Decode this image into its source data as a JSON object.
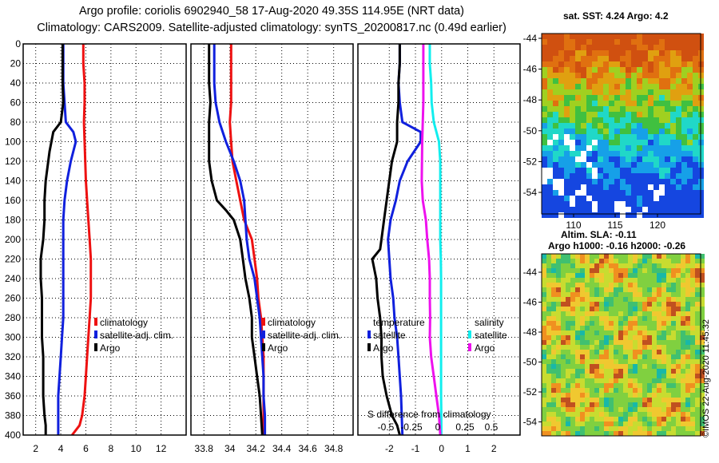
{
  "titles": {
    "line1": "Argo profile: coriolis 6902940_58 17-Aug-2020 49.35S 114.95E (NRT data)",
    "line2": "Climatology: CARS2009. Satellite-adjusted climatology: synTS_20200817.nc (0.49d earlier)"
  },
  "colors": {
    "red": "#ee1111",
    "blue": "#1020dd",
    "black": "#000000",
    "cyan": "#11eeee",
    "magenta": "#ee11ee"
  },
  "chart_data": [
    {
      "type": "line",
      "name": "temperature",
      "title": "",
      "xlabel": "",
      "ylabel": "",
      "xlim": [
        1,
        14
      ],
      "ylim": [
        400,
        0
      ],
      "x_ticks": [
        "2",
        "4",
        "6",
        "8",
        "10",
        "12"
      ],
      "y_ticks": [
        "0",
        "20",
        "40",
        "60",
        "80",
        "100",
        "120",
        "140",
        "160",
        "180",
        "200",
        "220",
        "240",
        "260",
        "280",
        "300",
        "320",
        "340",
        "360",
        "380",
        "400"
      ],
      "legend": [
        "climatology",
        "satellite-adj. clim.",
        "Argo"
      ],
      "legend_position": "lower-right",
      "series": [
        {
          "name": "climatology",
          "color": "red",
          "x": [
            5.8,
            5.8,
            5.9,
            5.9,
            5.85,
            5.9,
            5.95,
            6.0,
            6.1,
            6.2,
            6.3,
            6.4,
            6.4,
            6.4,
            6.3,
            6.2,
            6.1,
            6.0,
            5.9,
            5.7,
            5.5,
            5.2,
            4.9
          ],
          "y": [
            0,
            20,
            40,
            60,
            80,
            100,
            120,
            140,
            160,
            180,
            200,
            220,
            240,
            260,
            280,
            300,
            320,
            340,
            360,
            380,
            390,
            395,
            400
          ]
        },
        {
          "name": "satellite-adj. clim.",
          "color": "blue",
          "x": [
            4.2,
            4.2,
            4.2,
            4.3,
            4.4,
            5.0,
            5.2,
            4.8,
            4.5,
            4.3,
            4.2,
            4.2,
            4.2,
            4.2,
            4.2,
            4.2,
            4.1,
            4.0,
            3.9,
            3.8,
            3.8
          ],
          "y": [
            0,
            20,
            40,
            60,
            80,
            90,
            100,
            120,
            140,
            160,
            180,
            200,
            220,
            240,
            260,
            280,
            300,
            320,
            340,
            360,
            400
          ]
        },
        {
          "name": "Argo",
          "color": "black",
          "x": [
            4.15,
            4.15,
            4.15,
            4.2,
            4.0,
            3.4,
            3.1,
            2.9,
            2.8,
            2.7,
            2.7,
            2.6,
            2.5,
            2.4,
            2.4,
            2.5,
            2.5,
            2.5,
            2.6,
            2.6,
            2.6,
            2.7,
            2.8,
            2.8
          ],
          "y": [
            0,
            20,
            40,
            60,
            80,
            90,
            110,
            130,
            140,
            160,
            180,
            200,
            210,
            220,
            240,
            260,
            280,
            300,
            320,
            340,
            360,
            380,
            390,
            400
          ]
        }
      ]
    },
    {
      "type": "line",
      "name": "salinity",
      "title": "",
      "xlabel": "",
      "ylabel": "",
      "xlim": [
        33.7,
        34.95
      ],
      "ylim": [
        400,
        0
      ],
      "x_ticks": [
        "33.8",
        "34",
        "34.2",
        "34.4",
        "34.6",
        "34.8"
      ],
      "legend": [
        "climatology",
        "satellite-adj. clim.",
        "Argo"
      ],
      "legend_position": "lower-right",
      "series": [
        {
          "name": "climatology",
          "color": "red",
          "x": [
            34.01,
            34.01,
            34.01,
            34.01,
            34.0,
            34.01,
            34.02,
            34.05,
            34.08,
            34.11,
            34.17,
            34.19,
            34.21,
            34.22,
            34.24,
            34.25,
            34.26,
            34.26,
            34.26,
            34.26,
            34.26
          ],
          "y": [
            0,
            20,
            40,
            60,
            80,
            100,
            120,
            140,
            160,
            180,
            200,
            220,
            240,
            260,
            280,
            300,
            320,
            340,
            360,
            380,
            400
          ]
        },
        {
          "name": "satellite-adj. clim.",
          "color": "blue",
          "x": [
            33.88,
            33.88,
            33.88,
            33.89,
            33.92,
            33.97,
            34.03,
            34.08,
            34.11,
            34.12,
            34.13,
            34.15,
            34.19,
            34.21,
            34.23,
            34.24,
            34.25,
            34.26,
            34.26,
            34.27,
            34.27
          ],
          "y": [
            0,
            20,
            40,
            60,
            80,
            100,
            120,
            140,
            160,
            180,
            200,
            220,
            240,
            260,
            280,
            300,
            320,
            340,
            360,
            380,
            400
          ]
        },
        {
          "name": "Argo",
          "color": "black",
          "x": [
            33.84,
            33.84,
            33.84,
            33.85,
            33.84,
            33.84,
            33.84,
            33.86,
            33.9,
            33.97,
            34.03,
            34.08,
            34.1,
            34.12,
            34.15,
            34.17,
            34.17,
            34.19,
            34.21,
            34.23,
            34.24,
            34.25
          ],
          "y": [
            0,
            20,
            40,
            60,
            80,
            100,
            120,
            140,
            160,
            170,
            180,
            200,
            220,
            240,
            260,
            280,
            300,
            320,
            340,
            360,
            380,
            400
          ]
        }
      ]
    },
    {
      "type": "line",
      "name": "difference",
      "title": "",
      "xlabel": "S difference from climatology",
      "ylabel": "",
      "xlim": [
        -3.2,
        3.0
      ],
      "ylim": [
        400,
        0
      ],
      "x_ticks": [
        "-2",
        "-1",
        "0",
        "1",
        "2"
      ],
      "x_ticks_secondary": [
        "-0.5",
        "-0.25",
        "0",
        "0.25",
        "0.5"
      ],
      "legend_left": [
        "temperature",
        "satellite",
        "Argo"
      ],
      "legend_right": [
        "salinity",
        "satellite",
        "Argo"
      ],
      "legend_position": "lower-center",
      "series": [
        {
          "name": "temperature satellite",
          "color": "blue",
          "x": [
            -1.6,
            -1.6,
            -1.65,
            -1.6,
            -1.5,
            -0.8,
            -0.8,
            -1.3,
            -1.6,
            -1.75,
            -1.95,
            -2.05,
            -2.0,
            -1.95,
            -1.85,
            -1.8,
            -1.7,
            -1.65,
            -1.6,
            -1.55,
            -1.5
          ],
          "y": [
            0,
            20,
            40,
            60,
            80,
            90,
            100,
            120,
            140,
            160,
            180,
            200,
            220,
            240,
            260,
            280,
            300,
            320,
            340,
            360,
            400
          ]
        },
        {
          "name": "temperature Argo",
          "color": "black",
          "x": [
            -1.6,
            -1.6,
            -1.65,
            -1.65,
            -1.7,
            -1.7,
            -1.9,
            -2.0,
            -2.1,
            -2.2,
            -2.3,
            -2.35,
            -2.65,
            -2.5,
            -2.45,
            -2.35,
            -2.3,
            -2.3,
            -2.25,
            -2.1,
            -1.9,
            -1.7,
            -1.6
          ],
          "y": [
            0,
            20,
            40,
            60,
            80,
            100,
            120,
            140,
            160,
            180,
            200,
            210,
            220,
            240,
            260,
            280,
            300,
            320,
            340,
            360,
            380,
            390,
            400
          ]
        },
        {
          "name": "salinity satellite",
          "color": "cyan",
          "x": [
            -0.45,
            -0.45,
            -0.4,
            -0.38,
            -0.3,
            -0.1,
            -0.05,
            -0.05,
            -0.05,
            -0.05,
            -0.05,
            -0.03,
            -0.02,
            -0.02,
            -0.02,
            -0.02,
            -0.02,
            -0.02,
            -0.02,
            -0.01,
            -0.01
          ],
          "y": [
            0,
            20,
            40,
            60,
            80,
            100,
            120,
            140,
            160,
            180,
            200,
            220,
            240,
            260,
            280,
            300,
            320,
            340,
            360,
            380,
            400
          ]
        },
        {
          "name": "salinity Argo",
          "color": "magenta",
          "x": [
            -0.7,
            -0.7,
            -0.7,
            -0.7,
            -0.72,
            -0.74,
            -0.75,
            -0.76,
            -0.72,
            -0.6,
            -0.55,
            -0.48,
            -0.45,
            -0.45,
            -0.44,
            -0.45,
            -0.4,
            -0.3,
            -0.2,
            -0.1,
            -0.05
          ],
          "y": [
            0,
            20,
            40,
            60,
            80,
            100,
            120,
            140,
            160,
            180,
            200,
            220,
            240,
            260,
            280,
            300,
            320,
            340,
            360,
            380,
            400
          ]
        }
      ]
    },
    {
      "type": "heatmap",
      "name": "sst-map",
      "title": "sat. SST: 4.24 Argo: 4.2",
      "x_ticks": [
        "110",
        "115",
        "120"
      ],
      "y_ticks": [
        "-44",
        "-46",
        "-48",
        "-50",
        "-52",
        "-54"
      ]
    },
    {
      "type": "heatmap",
      "name": "sla-map",
      "title_line1": "Altim. SLA: -0.11",
      "title_line2": "Argo h1000: -0.16 h2000: -0.26",
      "y_ticks": [
        "-44",
        "-46",
        "-48",
        "-50",
        "-52",
        "-54"
      ]
    }
  ],
  "credit": "©IMOS 22-Aug-2020 11:45:32"
}
